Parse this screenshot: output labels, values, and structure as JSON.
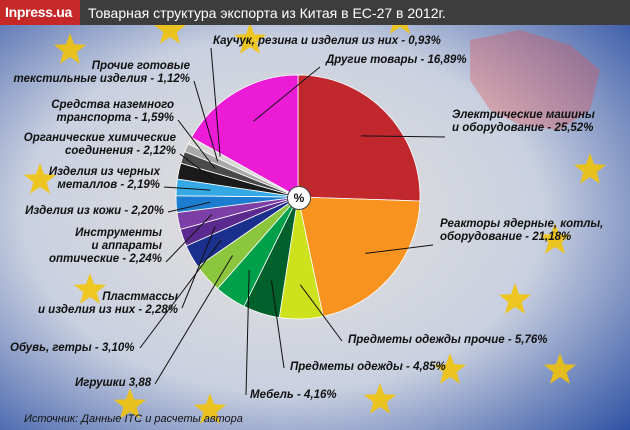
{
  "header": {
    "brand": "Inpress.ua",
    "title": "Товарная структура экспорта из Китая в ЕС-27 в 2012г."
  },
  "center_badge": "%",
  "source": "Источник: Данные ITC и расчеты автора",
  "colors": {
    "header_bg": "#3d3d3d",
    "brand_bg": "#c62828",
    "background": "#2a4fa0",
    "stars": "#f5c400"
  },
  "chart_data": {
    "type": "pie",
    "title": "Товарная структура экспорта из Китая в ЕС-27 в 2012г.",
    "slices": [
      {
        "label": "Электрические машины и оборудование - 25,52%",
        "value": 25.52,
        "color": "#c0282e"
      },
      {
        "label": "Реакторы ядерные, котлы, оборудование - 21,18%",
        "value": 21.18,
        "color": "#f7931e"
      },
      {
        "label": "Предметы одежды прочие - 5,76%",
        "value": 5.76,
        "color": "#cde21c"
      },
      {
        "label": "Предметы одежды - 4,85%",
        "value": 4.85,
        "color": "#00602b"
      },
      {
        "label": "Мебель - 4,16%",
        "value": 4.16,
        "color": "#00a04a"
      },
      {
        "label": "Игрушки 3,88",
        "value": 3.88,
        "color": "#8cc63f"
      },
      {
        "label": "Обувь, гетры - 3,10%",
        "value": 3.1,
        "color": "#1b2f8c"
      },
      {
        "label": "Пластмассы и изделия из них - 2,28%",
        "value": 2.28,
        "color": "#5b2a8e"
      },
      {
        "label": "Инструменты и аппараты оптические - 2,24%",
        "value": 2.24,
        "color": "#7b3fa5"
      },
      {
        "label": "Изделия из кожи - 2,20%",
        "value": 2.2,
        "color": "#1c7ccf"
      },
      {
        "label": "Изделия из черных металлов - 2,19%",
        "value": 2.19,
        "color": "#35a9e6"
      },
      {
        "label": "Органические химические соединения - 2,12%",
        "value": 2.12,
        "color": "#1a1a1a"
      },
      {
        "label": "Средства наземного транспорта - 1,59%",
        "value": 1.59,
        "color": "#4a4a4a"
      },
      {
        "label": "Прочие готовые текстильные изделия - 1,12%",
        "value": 1.12,
        "color": "#a9a9a9"
      },
      {
        "label": "Каучук, резина и изделия из них - 0,93%",
        "value": 0.93,
        "color": "#d8d8d8"
      },
      {
        "label": "Другие товары - 16,89%",
        "value": 16.89,
        "color": "#ec1bd6"
      }
    ]
  }
}
